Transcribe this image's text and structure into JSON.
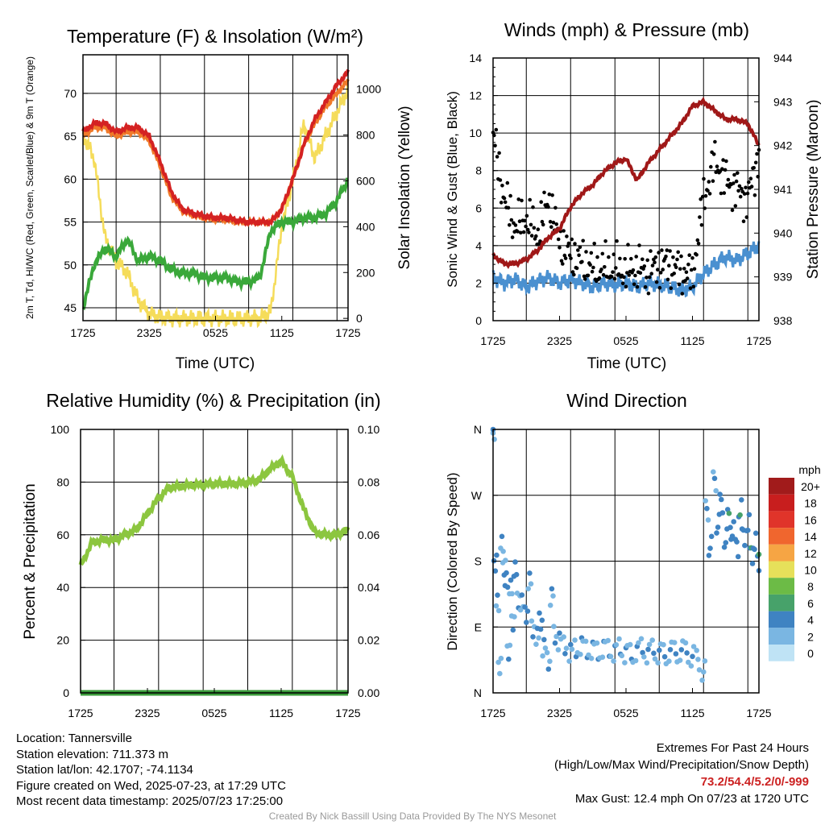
{
  "colors": {
    "temp": "#d42222",
    "temp9m": "#f07a2a",
    "dewpoint": "#3aa83a",
    "solar": "#f5dc5a",
    "wind": "#4a90d0",
    "gust": "#000000",
    "pressure": "#a01818",
    "rh": "#8cc63f",
    "precip": "#3a9a3a"
  },
  "chart_data": [
    {
      "type": "line",
      "title": "Temperature (F) & Insolation (W/m²)",
      "xlabel": "Time (UTC)",
      "ylabel_left": "2m T, Td, HI/WC (Red, Green, Scarlet/Blue) & 9m T (Orange)",
      "ylabel_right": "Solar Insolation (Yellow)",
      "x_ticks": [
        "1725",
        "2325",
        "0525",
        "1125",
        "1725"
      ],
      "y_left_ticks": [
        45,
        50,
        55,
        60,
        65,
        70
      ],
      "y_left_range": [
        43.5,
        74.5
      ],
      "y_right_ticks": [
        0,
        200,
        400,
        600,
        800,
        1000
      ],
      "y_right_range": [
        -10,
        1150
      ],
      "hours": [
        0,
        1,
        2,
        3,
        4,
        5,
        6,
        7,
        8,
        9,
        10,
        11,
        12,
        13,
        14,
        15,
        16,
        17,
        18,
        19,
        20,
        21,
        22,
        23,
        24
      ],
      "series": [
        {
          "name": "2m T",
          "values": [
            65.5,
            66.5,
            66.5,
            65.5,
            66,
            66,
            65,
            62,
            58.5,
            56.5,
            56,
            55.7,
            55.5,
            55.5,
            55.2,
            55,
            55,
            55,
            56.5,
            60,
            64,
            67,
            69,
            71,
            72.5
          ]
        },
        {
          "name": "9m T",
          "values": [
            65,
            66,
            66,
            65,
            65.5,
            65.5,
            64.5,
            61.5,
            58,
            56.3,
            55.8,
            55.5,
            55.3,
            55.3,
            55,
            55,
            55,
            55,
            56.5,
            60,
            64,
            66.5,
            68.5,
            70,
            71.5
          ]
        },
        {
          "name": "Td",
          "values": [
            45,
            50,
            52,
            51,
            53,
            50.5,
            51,
            50.5,
            49.5,
            49,
            49,
            48.5,
            48.5,
            48.5,
            48,
            48,
            48.5,
            54,
            55,
            55,
            55.5,
            55.5,
            56,
            57.5,
            60
          ]
        },
        {
          "name": "Solar",
          "values": [
            800,
            700,
            350,
            250,
            200,
            80,
            20,
            5,
            0,
            0,
            0,
            0,
            0,
            0,
            0,
            0,
            0,
            30,
            400,
            600,
            850,
            700,
            800,
            900,
            1000
          ]
        }
      ]
    },
    {
      "type": "line",
      "title": "Winds (mph) & Pressure (mb)",
      "xlabel": "Time (UTC)",
      "ylabel_left": "Sonic Wind & Gust (Blue, Black)",
      "ylabel_right": "Station Pressure (Maroon)",
      "x_ticks": [
        "1725",
        "2325",
        "0525",
        "1125",
        "1725"
      ],
      "y_left_ticks": [
        0,
        2,
        4,
        6,
        8,
        10,
        12,
        14
      ],
      "y_left_range": [
        0,
        14
      ],
      "y_right_ticks": [
        938,
        939,
        940,
        941,
        942,
        943,
        944
      ],
      "y_right_range": [
        938,
        944
      ],
      "hours": [
        0,
        1,
        2,
        3,
        4,
        5,
        6,
        7,
        8,
        9,
        10,
        11,
        12,
        13,
        14,
        15,
        16,
        17,
        18,
        19,
        20,
        21,
        22,
        23,
        24
      ],
      "series": [
        {
          "name": "Sonic Wind",
          "values": [
            2.3,
            2.0,
            2.2,
            1.8,
            2.1,
            2.3,
            2.0,
            2.2,
            2.0,
            1.8,
            2.0,
            1.9,
            2.0,
            1.8,
            2.0,
            1.9,
            1.8,
            1.6,
            1.8,
            2.5,
            3.0,
            3.4,
            3.2,
            3.6,
            4.0
          ]
        },
        {
          "name": "Gust",
          "values": [
            10,
            6.5,
            5,
            5.5,
            4.5,
            6.5,
            4.2,
            3.5,
            3.2,
            2.8,
            2.8,
            2.8,
            2.6,
            2.8,
            2.6,
            3.0,
            3.0,
            2.6,
            2.4,
            6.5,
            8.5,
            7.5,
            7.0,
            6.5,
            9.0
          ]
        },
        {
          "name": "Station Pressure",
          "values": [
            939.5,
            939.3,
            939.3,
            939.4,
            939.6,
            939.9,
            940.1,
            940.6,
            940.9,
            941.1,
            941.4,
            941.6,
            941.7,
            941.2,
            941.6,
            941.9,
            942.2,
            942.5,
            942.9,
            943.0,
            942.8,
            942.6,
            942.6,
            942.5,
            942.0
          ]
        }
      ]
    },
    {
      "type": "line",
      "title": "Relative Humidity (%) & Precipitation (in)",
      "xlabel": "",
      "ylabel_left": "Percent & Precipitation",
      "x_ticks": [
        "1725",
        "2325",
        "0525",
        "1125",
        "1725"
      ],
      "y_left_ticks": [
        0,
        20,
        40,
        60,
        80,
        100
      ],
      "y_left_range": [
        0,
        100
      ],
      "y_right_ticks": [
        "0.00",
        "0.02",
        "0.04",
        "0.06",
        "0.08",
        "0.10"
      ],
      "y_right_range": [
        0,
        0.1
      ],
      "hours": [
        0,
        1,
        2,
        3,
        4,
        5,
        6,
        7,
        8,
        9,
        10,
        11,
        12,
        13,
        14,
        15,
        16,
        17,
        18,
        19,
        20,
        21,
        22,
        23,
        24
      ],
      "series": [
        {
          "name": "RH",
          "values": [
            48,
            57,
            58,
            58,
            60,
            62,
            68,
            74,
            78,
            78.5,
            79,
            79,
            79.5,
            79.5,
            79.5,
            80,
            81,
            85,
            88,
            82,
            70,
            61,
            60,
            60,
            62
          ]
        },
        {
          "name": "Precipitation",
          "values": [
            0,
            0,
            0,
            0,
            0,
            0,
            0,
            0,
            0,
            0,
            0,
            0,
            0,
            0,
            0,
            0,
            0,
            0,
            0,
            0,
            0,
            0,
            0,
            0,
            0
          ]
        }
      ]
    },
    {
      "type": "scatter",
      "title": "Wind Direction",
      "ylabel": "Direction (Colored By Speed)",
      "x_ticks": [
        "1725",
        "2325",
        "0525",
        "1125",
        "1725"
      ],
      "y_ticks": [
        "N",
        "E",
        "S",
        "W",
        "N"
      ],
      "y_range_degrees": [
        0,
        360
      ],
      "legend_title": "mph",
      "legend_labels": [
        "20+",
        "18",
        "16",
        "14",
        "12",
        "10",
        "8",
        "6",
        "4",
        "2",
        "0"
      ],
      "legend_colors": [
        "#a11b1b",
        "#c81e1e",
        "#e0342a",
        "#f0662e",
        "#f6a544",
        "#e6e05a",
        "#6cbb46",
        "#47a26a",
        "#3f83c2",
        "#7ab6e2",
        "#bfe3f5"
      ],
      "points_hours": [
        0,
        0.2,
        0.4,
        0.6,
        0.8,
        1,
        1.2,
        1.4,
        1.6,
        1.8,
        2,
        2.3,
        2.6,
        3,
        3.3,
        3.6,
        4,
        4.3,
        4.6,
        5,
        5.3,
        5.6,
        6,
        6.5,
        7,
        7.5,
        8,
        8.5,
        9,
        9.5,
        10,
        10.5,
        11,
        11.5,
        12,
        12.5,
        13,
        13.5,
        14,
        14.5,
        15,
        15.5,
        16,
        16.5,
        17,
        17.5,
        18,
        18.5,
        19,
        19.3,
        19.6,
        20,
        20.3,
        20.6,
        21,
        21.3,
        21.6,
        22,
        22.3,
        22.6,
        23,
        23.3,
        23.6,
        24
      ],
      "points_direction": [
        355,
        180,
        120,
        40,
        200,
        175,
        150,
        60,
        140,
        100,
        165,
        130,
        120,
        110,
        150,
        90,
        75,
        100,
        60,
        45,
        130,
        80,
        70,
        65,
        55,
        60,
        65,
        58,
        60,
        55,
        62,
        58,
        57,
        60,
        55,
        52,
        58,
        60,
        55,
        58,
        55,
        52,
        57,
        55,
        58,
        55,
        50,
        45,
        30,
        250,
        200,
        290,
        230,
        260,
        210,
        240,
        220,
        200,
        250,
        215,
        230,
        190,
        205,
        180
      ],
      "points_speed": [
        2,
        3,
        2,
        1,
        2,
        2,
        3,
        2,
        2,
        2,
        3,
        2,
        2,
        3,
        2,
        2,
        2,
        3,
        2,
        2,
        2,
        2,
        2,
        2,
        2,
        2,
        2,
        2,
        2,
        2,
        2,
        2,
        2,
        2,
        2,
        2,
        2,
        2,
        2,
        2,
        2,
        2,
        2,
        2,
        2,
        2,
        2,
        1,
        1,
        2,
        3,
        2,
        3,
        3,
        3,
        4,
        3,
        3,
        4,
        3,
        3,
        4,
        3,
        4
      ]
    }
  ],
  "footer": {
    "location": "Location: Tannersville",
    "elevation": "Station elevation: 711.373 m",
    "latlon": "Station lat/lon: 42.1707; -74.1134",
    "created": "Figure created on Wed, 2025-07-23, at 17:29 UTC",
    "recent": "Most recent data timestamp: 2025/07/23 17:25:00",
    "extremes_title": "Extremes For Past 24 Hours",
    "extremes_sub": "(High/Low/Max Wind/Precipitation/Snow Depth)",
    "extremes_values": "73.2/54.4/5.2/0/-999",
    "max_gust": "Max Gust: 12.4 mph On 07/23 at 1720 UTC",
    "credit": "Created By Nick Bassill Using Data Provided By The NYS Mesonet"
  }
}
